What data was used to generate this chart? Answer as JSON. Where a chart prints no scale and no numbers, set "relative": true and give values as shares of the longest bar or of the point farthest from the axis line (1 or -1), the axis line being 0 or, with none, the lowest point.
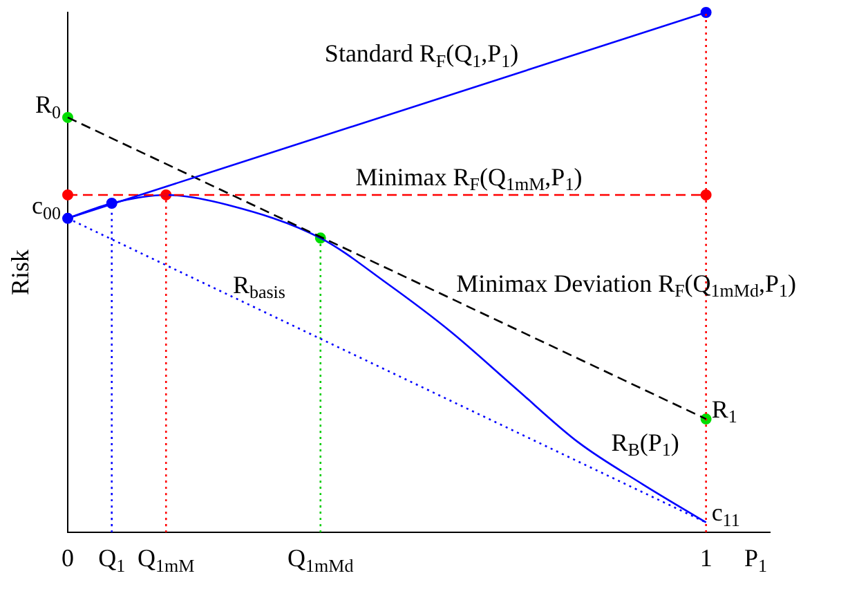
{
  "chart_data": {
    "type": "line",
    "relative": true,
    "ylabel": "Risk",
    "xlabel": "P$_{1}$",
    "xlim": [
      0,
      1.1
    ],
    "xticks": [
      0,
      1
    ],
    "grid": false,
    "legend": false,
    "series": [
      {
        "color": "#0000ff",
        "line_style": "solid",
        "x": [
          0,
          1
        ],
        "values": [
          0.604,
          1
        ]
      },
      {
        "color": "#ff0000",
        "line_style": "dashed",
        "x": [
          0,
          1
        ],
        "values": [
          0.649,
          0.649
        ]
      },
      {
        "color": "#000000",
        "line_style": "dashed",
        "x": [
          0,
          1
        ],
        "values": [
          0.798,
          0.218
        ]
      },
      {
        "color": "#0000ff",
        "line_style": "dotted",
        "x": [
          0,
          1
        ],
        "values": [
          0.604,
          0.019
        ]
      },
      {
        "color": "#0000ff",
        "line_style": "solid",
        "x": [
          0,
          0.069,
          0.154,
          0.25,
          0.396,
          0.5,
          0.6,
          0.7,
          0.8,
          0.9,
          1
        ],
        "values": [
          0.604,
          0.633,
          0.649,
          0.63,
          0.566,
          0.479,
          0.386,
          0.279,
          0.173,
          0.093,
          0.019
        ]
      },
      {
        "color": "#0000ff",
        "line_style": "dotted",
        "x": [
          0.069,
          0.069
        ],
        "values": [
          0,
          0.633
        ]
      },
      {
        "color": "#ff0000",
        "line_style": "dotted",
        "x": [
          0.154,
          0.154
        ],
        "values": [
          0,
          0.649
        ]
      },
      {
        "color": "#00cc00",
        "line_style": "dotted",
        "x": [
          0.396,
          0.396
        ],
        "values": [
          0,
          0.566
        ]
      },
      {
        "color": "#ff0000",
        "line_style": "dotted",
        "x": [
          1,
          1
        ],
        "values": [
          0,
          1
        ]
      },
      {
        "type": "scatter",
        "marker": "circle",
        "x": [
          0,
          0.069,
          1,
          0,
          0.154,
          1,
          0,
          0.396,
          1
        ],
        "values": [
          0.604,
          0.633,
          1,
          0.649,
          0.649,
          0.649,
          0.798,
          0.566,
          0.218
        ],
        "colors": [
          "#0000ff",
          "#0000ff",
          "#0000ff",
          "#ff0000",
          "#ff0000",
          "#ff0000",
          "#00dd00",
          "#00dd00",
          "#00dd00"
        ]
      }
    ],
    "annotations": [
      "Standard R$_{F}$(Q$_{1}$,P$_{1}$)",
      "Minimax R$_{F}$(Q$_{1mM}$,P$_{1}$)",
      {
        "text": "Minimax Deviation R$_{F}$(Q$_{1mMd}$,P$_{1}$)",
        "x": 0.6,
        "y": 0.46
      },
      {
        "text": "R$_{basis}$",
        "x": 0.25,
        "y": 0.457
      },
      "R$_{B}$(P$_{1}$)",
      {
        "text": "R$_{0}$",
        "x": 0,
        "y": 0.798
      },
      {
        "text": "c$_{00}$",
        "x": 0,
        "y": 0.604
      },
      {
        "text": "R$_{1}$",
        "x": 1,
        "y": 0.218
      },
      {
        "text": "c$_{11}$",
        "x": 1,
        "y": 0.019
      },
      {
        "text": "Q$_{1}$",
        "x": 0.069,
        "y": 0
      },
      {
        "text": "Q$_{1mM}$",
        "x": 0.154,
        "y": 0
      },
      {
        "text": "Q$_{1mMd}$",
        "x": 0.396,
        "y": 0
      }
    ]
  }
}
